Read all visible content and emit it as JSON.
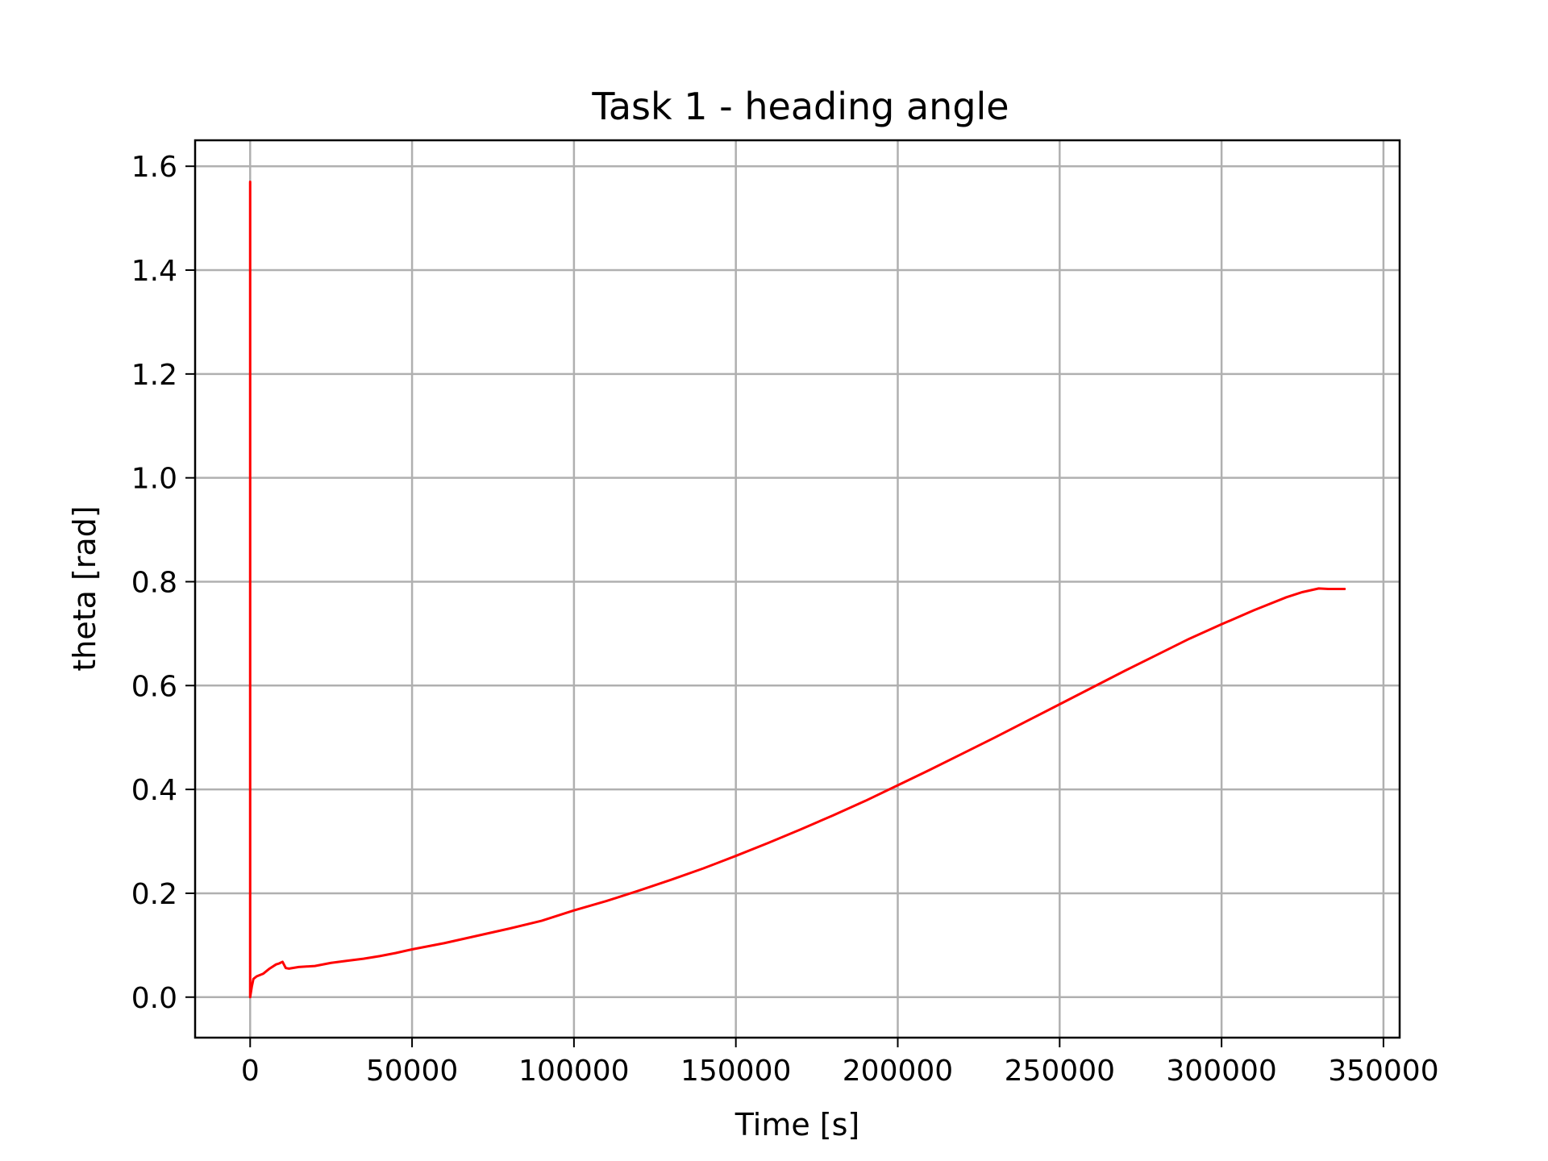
{
  "chart_data": {
    "type": "line",
    "title": "Task 1 - heading angle",
    "xlabel": "Time [s]",
    "ylabel": "theta [rad]",
    "xlim": [
      -17000,
      355000
    ],
    "ylim": [
      -0.078,
      1.65
    ],
    "xticks": [
      0,
      50000,
      100000,
      150000,
      200000,
      250000,
      300000,
      350000
    ],
    "xtick_labels": [
      "0",
      "50000",
      "100000",
      "150000",
      "200000",
      "250000",
      "300000",
      "350000"
    ],
    "yticks": [
      0.0,
      0.2,
      0.4,
      0.6,
      0.8,
      1.0,
      1.2,
      1.4,
      1.6
    ],
    "ytick_labels": [
      "0.0",
      "0.2",
      "0.4",
      "0.6",
      "0.8",
      "1.0",
      "1.2",
      "1.4",
      "1.6"
    ],
    "grid": true,
    "series": [
      {
        "color": "#ff0000",
        "x": [
          0,
          0,
          500,
          1000,
          2000,
          4000,
          6000,
          8000,
          9000,
          10000,
          11000,
          12000,
          15000,
          20000,
          25000,
          30000,
          35000,
          40000,
          45000,
          50000,
          60000,
          70000,
          80000,
          90000,
          100000,
          110000,
          120000,
          130000,
          140000,
          150000,
          160000,
          170000,
          180000,
          190000,
          200000,
          210000,
          220000,
          230000,
          240000,
          250000,
          260000,
          270000,
          280000,
          290000,
          300000,
          310000,
          320000,
          325000,
          330000,
          333000,
          338000
        ],
        "y": [
          1.57,
          0.0,
          0.02,
          0.035,
          0.04,
          0.045,
          0.055,
          0.063,
          0.065,
          0.068,
          0.056,
          0.055,
          0.058,
          0.06,
          0.066,
          0.07,
          0.074,
          0.079,
          0.085,
          0.092,
          0.104,
          0.118,
          0.132,
          0.147,
          0.167,
          0.185,
          0.205,
          0.226,
          0.248,
          0.272,
          0.297,
          0.323,
          0.35,
          0.378,
          0.408,
          0.438,
          0.469,
          0.5,
          0.532,
          0.564,
          0.596,
          0.628,
          0.659,
          0.69,
          0.718,
          0.745,
          0.77,
          0.78,
          0.787,
          0.786,
          0.786
        ]
      }
    ]
  }
}
